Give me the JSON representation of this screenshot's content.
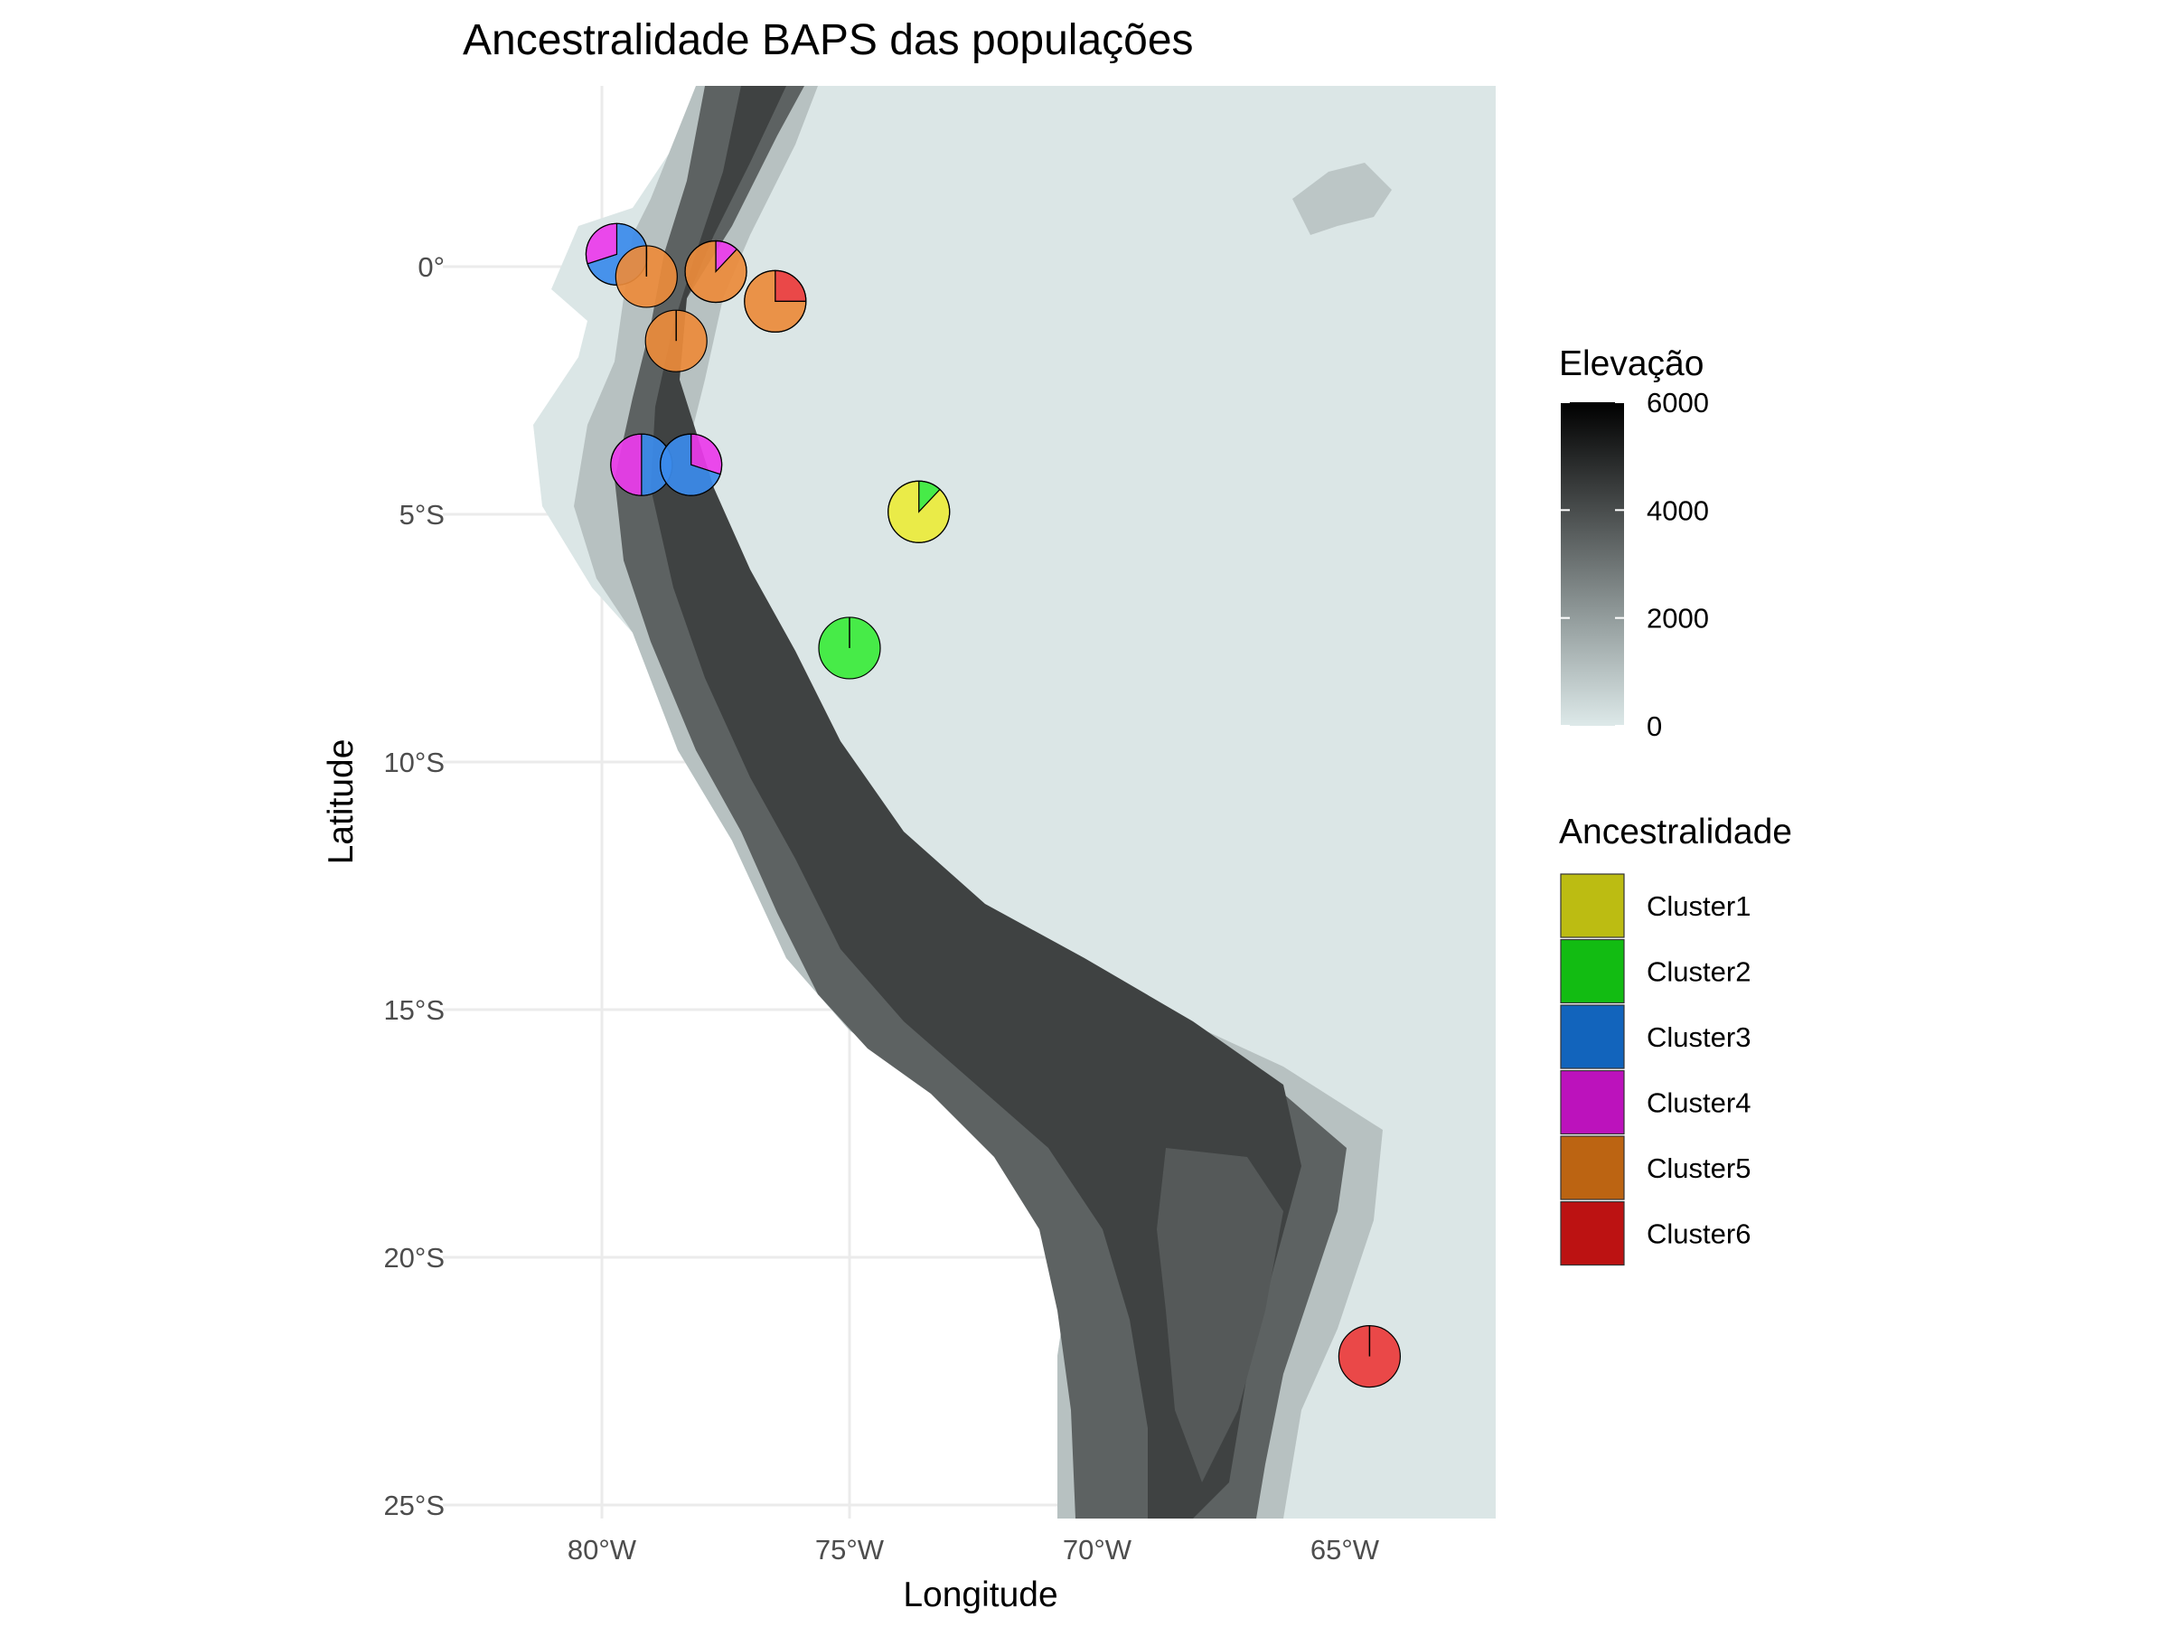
{
  "title": "Ancestralidade BAPS das populações",
  "chart_data": {
    "type": "scatter",
    "title": "Ancestralidade BAPS das populações",
    "xlabel": "Longitude",
    "ylabel": "Latitude",
    "xlim": [
      -83,
      -62
    ],
    "ylim": [
      -25.3,
      3.7
    ],
    "x_ticks": [
      {
        "value": -80,
        "label": "80°W"
      },
      {
        "value": -75,
        "label": "75°W"
      },
      {
        "value": -70,
        "label": "70°W"
      },
      {
        "value": -65,
        "label": "65°W"
      }
    ],
    "y_ticks": [
      {
        "value": 0,
        "label": "0°"
      },
      {
        "value": -5,
        "label": "5°S"
      },
      {
        "value": -10,
        "label": "10°S"
      },
      {
        "value": -15,
        "label": "15°S"
      },
      {
        "value": -20,
        "label": "20°S"
      },
      {
        "value": -25,
        "label": "25°S"
      }
    ],
    "grid": true,
    "background_raster": {
      "name": "Elevação",
      "colors": [
        "#dde9e9",
        "#9aa4a4",
        "#4a4e4e",
        "#000000"
      ],
      "ticks": [
        {
          "value": 6000,
          "label": "6000"
        },
        {
          "value": 4000,
          "label": "4000"
        },
        {
          "value": 2000,
          "label": "2000"
        },
        {
          "value": 0,
          "label": "0"
        }
      ],
      "range": [
        0,
        6000
      ]
    },
    "clusters": [
      {
        "name": "Cluster1",
        "color": "#bcbc12"
      },
      {
        "name": "Cluster2",
        "color": "#12bc12"
      },
      {
        "name": "Cluster3",
        "color": "#1264bc"
      },
      {
        "name": "Cluster4",
        "color": "#bc12bc"
      },
      {
        "name": "Cluster5",
        "color": "#bc6412"
      },
      {
        "name": "Cluster6",
        "color": "#bc1212"
      }
    ],
    "pie_fill_colors": {
      "Cluster1": "#ebeb3b",
      "Cluster2": "#3beb3b",
      "Cluster3": "#3b8beb",
      "Cluster4": "#eb3beb",
      "Cluster5": "#eb8b3b",
      "Cluster6": "#eb3b3b"
    },
    "populations": [
      {
        "lon": -79.7,
        "lat": 0.25,
        "props": {
          "Cluster3": 0.7,
          "Cluster4": 0.3
        }
      },
      {
        "lon": -79.1,
        "lat": -0.2,
        "props": {
          "Cluster5": 1.0
        }
      },
      {
        "lon": -77.7,
        "lat": -0.1,
        "props": {
          "Cluster4": 0.12,
          "Cluster5": 0.88
        }
      },
      {
        "lon": -76.5,
        "lat": -0.7,
        "props": {
          "Cluster6": 0.25,
          "Cluster5": 0.75
        }
      },
      {
        "lon": -78.5,
        "lat": -1.5,
        "props": {
          "Cluster5": 1.0
        }
      },
      {
        "lon": -79.2,
        "lat": -4.0,
        "props": {
          "Cluster3": 0.5,
          "Cluster4": 0.5
        }
      },
      {
        "lon": -78.2,
        "lat": -4.0,
        "props": {
          "Cluster4": 0.3,
          "Cluster3": 0.7
        }
      },
      {
        "lon": -73.6,
        "lat": -4.95,
        "props": {
          "Cluster2": 0.12,
          "Cluster1": 0.88
        }
      },
      {
        "lon": -75.0,
        "lat": -7.7,
        "props": {
          "Cluster2": 1.0
        }
      },
      {
        "lon": -64.5,
        "lat": -22.0,
        "props": {
          "Cluster6": 1.0
        }
      }
    ],
    "legend_placement": "right"
  }
}
